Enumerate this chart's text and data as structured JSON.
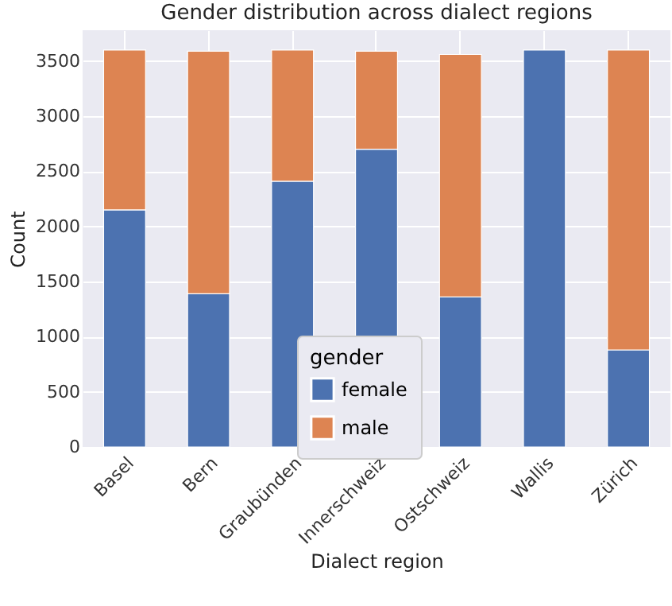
{
  "chart_data": {
    "type": "bar",
    "title": "Gender distribution across dialect regions",
    "xlabel": "Dialect region",
    "ylabel": "Count",
    "legend_title": "gender",
    "categories": [
      "Basel",
      "Bern",
      "Graubünden",
      "Innerschweiz",
      "Ostschweiz",
      "Wallis",
      "Zürich"
    ],
    "series": [
      {
        "name": "female",
        "color": "#4c72b0",
        "values": [
          2150,
          1390,
          2410,
          2700,
          1360,
          3600,
          880
        ]
      },
      {
        "name": "male",
        "color": "#dd8452",
        "values": [
          1450,
          2200,
          1190,
          890,
          2200,
          null,
          2720
        ]
      }
    ],
    "stacked": true,
    "ylim": [
      0,
      3780
    ],
    "yticks": [
      0,
      500,
      1000,
      1500,
      2000,
      2500,
      3000,
      3500
    ],
    "grid": true,
    "legend": "bottom"
  }
}
